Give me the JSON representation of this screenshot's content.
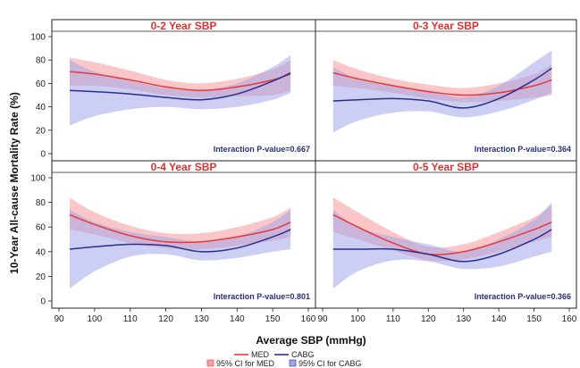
{
  "chart_data": {
    "type": "line",
    "xlabel": "Average SBP (mmHg)",
    "ylabel": "10-Year All-cause Mortality Rate (%)",
    "xlim": [
      90,
      160
    ],
    "ylim": [
      0,
      100
    ],
    "x_ticks": [
      90,
      100,
      110,
      120,
      130,
      140,
      150,
      160
    ],
    "x_tick_labels_right": [
      "90",
      "100",
      "110",
      "120",
      "130",
      "140",
      "150",
      "160"
    ],
    "x_tick_labels_left": [
      "90",
      "100",
      "110",
      "120",
      "130",
      "140",
      "150",
      "160"
    ],
    "y_ticks": [
      0,
      20,
      40,
      60,
      80,
      100
    ],
    "y_tick_labels": [
      "0",
      "20",
      "40",
      "60",
      "80",
      "100"
    ],
    "grid": false,
    "colors": {
      "MED": "#e8393a",
      "CABG": "#2b2f8e",
      "MED_band": "#f7a0a4",
      "CABG_band": "#a3a6ea",
      "title": "#e03030"
    },
    "legend": {
      "placement": "bottom-center",
      "line_items": [
        "MED",
        "CABG"
      ],
      "band_items": [
        "95% CI for MED",
        "95% CI for CABG"
      ]
    },
    "panels": [
      {
        "title": "0-2 Year SBP",
        "annotation": "Interaction P-value=0.667",
        "x": [
          93,
          100,
          110,
          120,
          130,
          140,
          150,
          155
        ],
        "series": [
          {
            "name": "MED",
            "values": [
              70,
              68,
              63,
              57,
              54,
              57,
              63,
              68
            ]
          },
          {
            "name": "CABG",
            "values": [
              54,
              53,
              51,
              48,
              46,
              51,
              62,
              69
            ]
          }
        ],
        "bands": [
          {
            "name": "95% CI for MED",
            "lower": [
              58,
              58,
              55,
              50,
              48,
              49,
              50,
              54
            ],
            "upper": [
              82,
              78,
              71,
              63,
              60,
              64,
              72,
              80
            ]
          },
          {
            "name": "95% CI for CABG",
            "lower": [
              24,
              32,
              38,
              40,
              38,
              40,
              46,
              52
            ],
            "upper": [
              80,
              70,
              62,
              56,
              54,
              60,
              74,
              84
            ]
          }
        ]
      },
      {
        "title": "0-3 Year SBP",
        "annotation": "Interaction P-value=0.364",
        "x": [
          93,
          100,
          110,
          120,
          130,
          140,
          150,
          155
        ],
        "series": [
          {
            "name": "MED",
            "values": [
              69,
              64,
              58,
              53,
              50,
              52,
              58,
              63
            ]
          },
          {
            "name": "CABG",
            "values": [
              45,
              46,
              47,
              45,
              39,
              47,
              63,
              73
            ]
          }
        ],
        "bands": [
          {
            "name": "95% CI for MED",
            "lower": [
              58,
              56,
              52,
              47,
              44,
              45,
              48,
              50
            ],
            "upper": [
              80,
              72,
              64,
              59,
              56,
              60,
              68,
              76
            ]
          },
          {
            "name": "95% CI for CABG",
            "lower": [
              18,
              28,
              35,
              36,
              31,
              36,
              46,
              52
            ],
            "upper": [
              74,
              64,
              58,
              54,
              48,
              58,
              78,
              88
            ]
          }
        ]
      },
      {
        "title": "0-4 Year SBP",
        "annotation": "Interaction P-value=0.801",
        "x": [
          93,
          100,
          110,
          120,
          130,
          140,
          150,
          155
        ],
        "series": [
          {
            "name": "MED",
            "values": [
              70,
              62,
              53,
              48,
              48,
              52,
              58,
              64
            ]
          },
          {
            "name": "CABG",
            "values": [
              42,
              44,
              46,
              45,
              40,
              43,
              52,
              58
            ]
          }
        ],
        "bands": [
          {
            "name": "95% CI for MED",
            "lower": [
              58,
              54,
              47,
              43,
              42,
              45,
              49,
              52
            ],
            "upper": [
              84,
              72,
              61,
              55,
              55,
              60,
              68,
              76
            ]
          },
          {
            "name": "95% CI for CABG",
            "lower": [
              10,
              24,
              36,
              38,
              33,
              35,
              40,
              42
            ],
            "upper": [
              74,
              64,
              56,
              52,
              48,
              52,
              64,
              74
            ]
          }
        ]
      },
      {
        "title": "0-5 Year SBP",
        "annotation": "Interaction P-value=0.366",
        "x": [
          93,
          100,
          110,
          120,
          130,
          140,
          150,
          155
        ],
        "series": [
          {
            "name": "MED",
            "values": [
              70,
              60,
              47,
              38,
              40,
              48,
              58,
              64
            ]
          },
          {
            "name": "CABG",
            "values": [
              42,
              42,
              42,
              38,
              32,
              38,
              50,
              58
            ]
          }
        ],
        "bands": [
          {
            "name": "95% CI for MED",
            "lower": [
              56,
              50,
              41,
              33,
              34,
              40,
              48,
              52
            ],
            "upper": [
              84,
              72,
              56,
              44,
              46,
              56,
              68,
              78
            ]
          },
          {
            "name": "95% CI for CABG",
            "lower": [
              10,
              24,
              33,
              32,
              26,
              28,
              36,
              40
            ],
            "upper": [
              74,
              60,
              52,
              46,
              40,
              50,
              66,
              80
            ]
          }
        ]
      }
    ]
  }
}
